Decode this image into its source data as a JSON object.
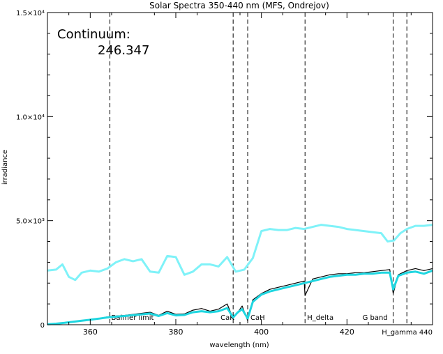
{
  "chart_data": {
    "type": "line",
    "title": "Solar Spectra 350-440 nm (MFS, Ondrejov)",
    "xlabel": "wavelength (nm)",
    "ylabel": "irradiance",
    "xlim": [
      350,
      440
    ],
    "ylim": [
      0,
      15000
    ],
    "grid": false,
    "x_ticks": [
      {
        "value": 360,
        "label": "360"
      },
      {
        "value": 380,
        "label": "380"
      },
      {
        "value": 400,
        "label": "400"
      },
      {
        "value": 420,
        "label": "420"
      }
    ],
    "x_tick_end_label": "440",
    "y_ticks": [
      {
        "value": 0,
        "label": "0"
      },
      {
        "value": 5000,
        "label": "5.0×10³"
      },
      {
        "value": 10000,
        "label": "1.0×10⁴"
      },
      {
        "value": 15000,
        "label": "1.5×10⁴"
      }
    ],
    "annotation": {
      "text": "Continuum:",
      "value": "246.347"
    },
    "markers": [
      {
        "x": 364.6,
        "label": "Balmer limit"
      },
      {
        "x": 393.4,
        "label": "CaK"
      },
      {
        "x": 396.8,
        "label": "CaH"
      },
      {
        "x": 410.2,
        "label": "H_delta"
      },
      {
        "x": 430.8,
        "label": "G band"
      },
      {
        "x": 434.0,
        "label": "H_gamma"
      }
    ],
    "series": [
      {
        "color": "#7ff2f8",
        "x": [
          350,
          352,
          353.5,
          355,
          356.5,
          358,
          360,
          362,
          364,
          366,
          368,
          370,
          372,
          374,
          376,
          378,
          380,
          382,
          384,
          386,
          388,
          390,
          392,
          394,
          396,
          398,
          400,
          402,
          404,
          406,
          408,
          410,
          412,
          414,
          416,
          418,
          420,
          422,
          424,
          426,
          428,
          429.5,
          431,
          432.5,
          434,
          436,
          438,
          440
        ],
        "y": [
          2600,
          2650,
          2900,
          2300,
          2150,
          2500,
          2600,
          2550,
          2700,
          3000,
          3150,
          3050,
          3150,
          2550,
          2500,
          3300,
          3250,
          2400,
          2550,
          2900,
          2900,
          2800,
          3250,
          2550,
          2650,
          3200,
          4500,
          4600,
          4550,
          4550,
          4650,
          4600,
          4700,
          4800,
          4750,
          4700,
          4600,
          4550,
          4500,
          4450,
          4400,
          4000,
          4050,
          4400,
          4600,
          4750,
          4750,
          4800
        ]
      },
      {
        "color": "#000000",
        "x": [
          350,
          352,
          354,
          356,
          358,
          360,
          362,
          364,
          366,
          368,
          370,
          372,
          374,
          376,
          378,
          380,
          382,
          384,
          386,
          388,
          390,
          392,
          393.4,
          394.5,
          395.5,
          396.8,
          398,
          400,
          402,
          404,
          406,
          408,
          410,
          410.2,
          412,
          414,
          416,
          418,
          420,
          422,
          424,
          426,
          428,
          430,
          430.8,
          432,
          434,
          436,
          438,
          440
        ],
        "y": [
          20,
          60,
          100,
          150,
          200,
          250,
          300,
          380,
          420,
          450,
          500,
          550,
          600,
          450,
          650,
          500,
          520,
          700,
          780,
          650,
          750,
          1000,
          300,
          600,
          900,
          200,
          1200,
          1500,
          1700,
          1800,
          1900,
          2000,
          2100,
          1400,
          2200,
          2300,
          2400,
          2450,
          2450,
          2500,
          2500,
          2550,
          2600,
          2650,
          1500,
          2400,
          2600,
          2700,
          2600,
          2700
        ]
      },
      {
        "color": "#1fd6e0",
        "x": [
          350,
          352,
          354,
          356,
          358,
          360,
          362,
          364,
          366,
          368,
          370,
          372,
          374,
          376,
          378,
          380,
          382,
          384,
          386,
          388,
          390,
          392,
          393.4,
          394.5,
          395.5,
          396.8,
          398,
          400,
          402,
          404,
          406,
          408,
          410,
          412,
          414,
          416,
          418,
          420,
          422,
          424,
          426,
          428,
          430,
          430.8,
          432,
          434,
          436,
          438,
          440
        ],
        "y": [
          20,
          50,
          90,
          140,
          190,
          240,
          290,
          350,
          390,
          420,
          460,
          500,
          540,
          420,
          560,
          450,
          470,
          600,
          650,
          600,
          650,
          800,
          350,
          600,
          750,
          300,
          1100,
          1450,
          1600,
          1700,
          1800,
          1900,
          2000,
          2100,
          2200,
          2300,
          2350,
          2400,
          2400,
          2450,
          2450,
          2500,
          2500,
          1700,
          2350,
          2500,
          2550,
          2450,
          2600
        ]
      }
    ]
  }
}
